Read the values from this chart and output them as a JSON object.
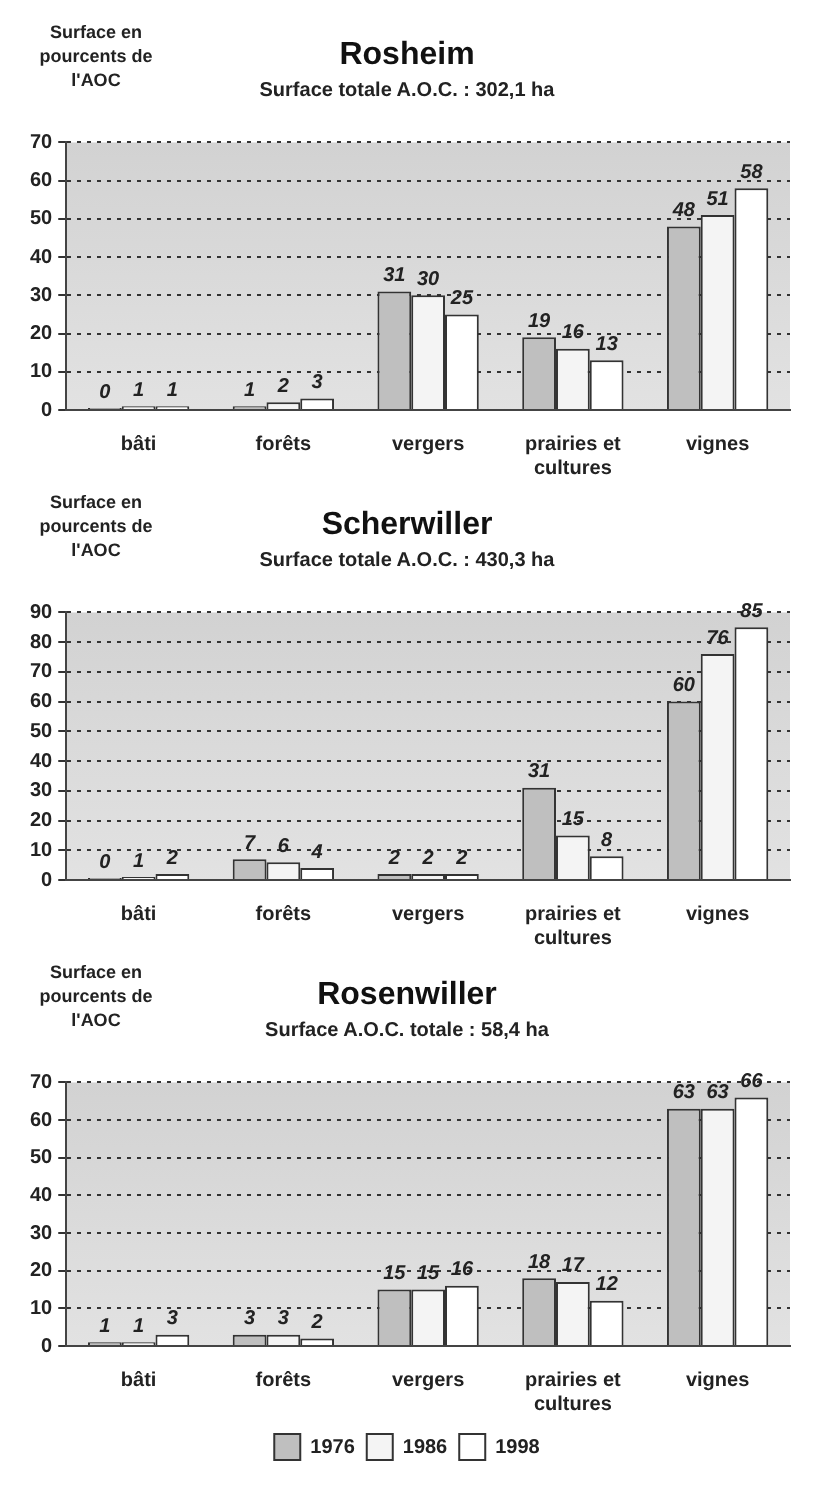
{
  "chart_data": [
    {
      "type": "bar",
      "title": "Rosheim",
      "subtitle": "Surface totale A.O.C. : 302,1 ha",
      "ylabel": "Surface en pourcents de l'AOC",
      "categories": [
        "bâti",
        "forêts",
        "vergers",
        "prairies et cultures",
        "vignes"
      ],
      "series": [
        {
          "color": "#bfbfbf",
          "values": [
            0,
            1,
            31,
            19,
            48
          ]
        },
        {
          "color": "#f4f4f4",
          "values": [
            1,
            2,
            30,
            16,
            51
          ]
        },
        {
          "color": "#ffffff",
          "values": [
            1,
            3,
            25,
            13,
            58
          ]
        }
      ],
      "ylim": [
        0,
        70
      ],
      "yticks": [
        0,
        10,
        20,
        30,
        40,
        50,
        60,
        70
      ],
      "grid": "y",
      "data_labels": true
    },
    {
      "type": "bar",
      "title": "Scherwiller",
      "subtitle": "Surface totale A.O.C. : 430,3 ha",
      "ylabel": "Surface en pourcents de l'AOC",
      "categories": [
        "bâti",
        "forêts",
        "vergers",
        "prairies et cultures",
        "vignes"
      ],
      "series": [
        {
          "color": "#bfbfbf",
          "values": [
            0,
            7,
            2,
            31,
            60
          ]
        },
        {
          "color": "#f4f4f4",
          "values": [
            1,
            6,
            2,
            15,
            76
          ]
        },
        {
          "color": "#ffffff",
          "values": [
            2,
            4,
            2,
            8,
            85
          ]
        }
      ],
      "ylim": [
        0,
        90
      ],
      "yticks": [
        0,
        10,
        20,
        30,
        40,
        50,
        60,
        70,
        80,
        90
      ],
      "grid": "y",
      "data_labels": true
    },
    {
      "type": "bar",
      "title": "Rosenwiller",
      "subtitle": "Surface A.O.C. totale : 58,4 ha",
      "ylabel": "Surface en pourcents de l'AOC",
      "categories": [
        "bâti",
        "forêts",
        "vergers",
        "prairies et cultures",
        "vignes"
      ],
      "series": [
        {
          "name": "1976",
          "color": "#bfbfbf",
          "values": [
            1,
            3,
            15,
            18,
            63
          ]
        },
        {
          "name": "1986",
          "color": "#f4f4f4",
          "values": [
            1,
            3,
            15,
            17,
            63
          ]
        },
        {
          "name": "1998",
          "color": "#ffffff",
          "values": [
            3,
            2,
            16,
            12,
            66
          ]
        }
      ],
      "ylim": [
        0,
        70
      ],
      "yticks": [
        0,
        10,
        20,
        30,
        40,
        50,
        60,
        70
      ],
      "grid": "y",
      "data_labels": true,
      "legend": "bottom"
    }
  ]
}
